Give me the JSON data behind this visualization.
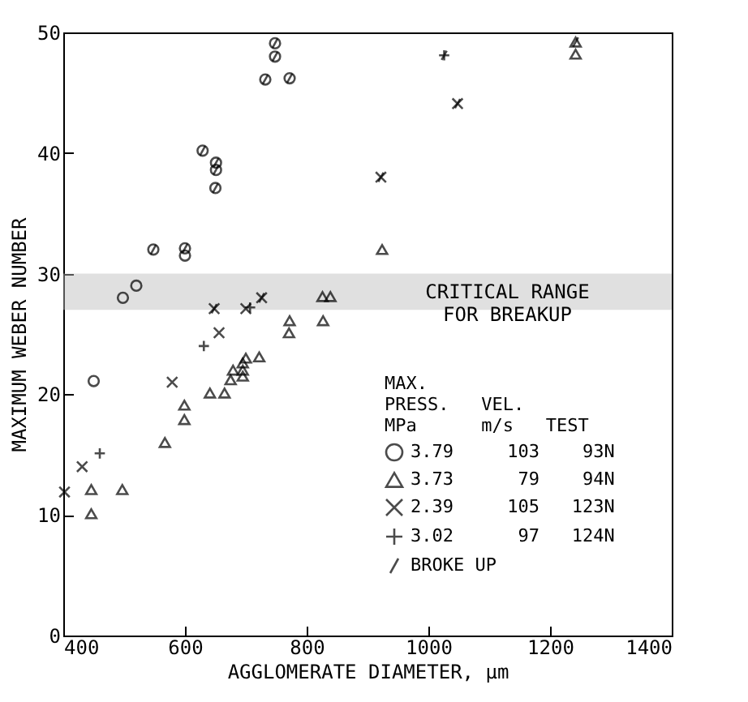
{
  "chart_data": {
    "type": "scatter",
    "xlabel": "AGGLOMERATE DIAMETER, µm",
    "ylabel": "MAXIMUM WEBER NUMBER",
    "legend_title": "         MAX.\nPRESS.   VEL.\nMPa      m/s   TEST",
    "legend": "bottom right",
    "grid": false,
    "xlim": [
      400,
      1400
    ],
    "xticks": [
      400,
      600,
      800,
      {
        "value": 1000,
        "label": "1000"
      },
      {
        "value": 1200,
        "label": "1200"
      },
      {
        "value": 1400,
        "label": "1400"
      }
    ],
    "ylim": [
      0,
      50
    ],
    "yticks": [
      0,
      10,
      20,
      30,
      40,
      50
    ],
    "bands": [
      {
        "axis": "y",
        "from": 27,
        "to": 30,
        "label": "CRITICAL RANGE\nFOR BREAKUP",
        "color": "#bbbbbb"
      }
    ],
    "series": [
      {
        "name": "3.79     103    93N",
        "color": "#000000",
        "marker": "circle",
        "x": [
          450,
          498,
          520,
          548,
          600,
          600,
          629,
          651,
          651,
          650,
          732,
          748,
          748,
          772
        ],
        "values": [
          21.1,
          28.0,
          29.0,
          32.0,
          32.1,
          31.5,
          40.2,
          39.2,
          38.6,
          37.1,
          46.1,
          48.0,
          49.1,
          46.2
        ]
      },
      {
        "name": "3.73      79    94N",
        "color": "#000000",
        "marker": "triangle",
        "x": [
          446,
          446,
          497,
          567,
          599,
          599,
          641,
          665,
          675,
          679,
          695,
          695,
          695,
          700,
          722,
          771,
          772,
          826,
          839,
          827,
          924,
          1242,
          1242
        ],
        "values": [
          10.1,
          12.1,
          12.1,
          16.0,
          17.9,
          19.1,
          20.1,
          20.1,
          21.2,
          22.0,
          21.5,
          22.0,
          22.6,
          23.0,
          23.1,
          25.1,
          26.1,
          28.1,
          28.1,
          26.1,
          32.0,
          48.2,
          49.2
        ]
      },
      {
        "name": "2.39     105   123N",
        "color": "#000000",
        "marker": "x",
        "x": [
          402,
          431,
          579,
          656,
          648,
          700,
          726,
          922,
          1048
        ],
        "values": [
          11.9,
          14.0,
          21.0,
          25.1,
          27.1,
          27.1,
          28.0,
          38.0,
          44.1
        ]
      },
      {
        "name": "3.02      97   124N",
        "color": "#000000",
        "marker": "cross",
        "x": [
          460,
          631,
          707,
          1026
        ],
        "values": [
          15.1,
          24.0,
          27.2,
          48.1
        ]
      },
      {
        "name": "BROKE UP",
        "color": "#000000",
        "x": [
          548,
          600,
          629,
          651,
          651,
          650,
          732,
          748,
          748,
          772,
          1242,
          648,
          726,
          922,
          1048,
          1026
        ],
        "values": [
          32.0,
          32.1,
          40.2,
          39.2,
          38.6,
          37.1,
          46.1,
          48.0,
          49.1,
          46.2,
          49.2,
          27.1,
          28.0,
          38.0,
          44.1,
          48.1
        ]
      }
    ]
  }
}
